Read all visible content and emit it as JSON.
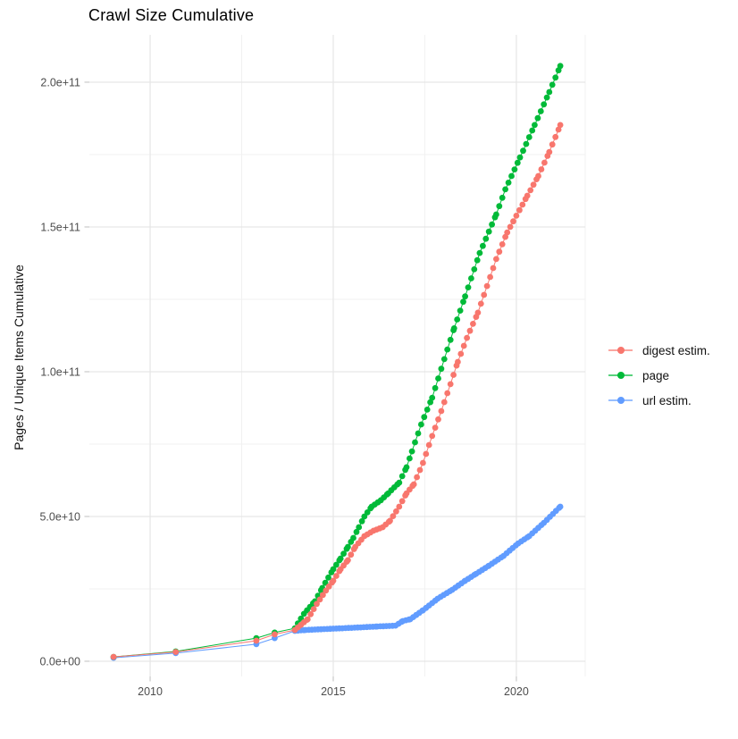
{
  "chart_data": {
    "type": "scatter",
    "title": "Crawl Size Cumulative",
    "xlabel": "",
    "ylabel": "Pages / Unique Items Cumulative",
    "units": "point values are [year, pages_in_billions]; 1 unit = 1e9 pages/items",
    "x_ticks": [
      {
        "label": "2010",
        "value": 2010
      },
      {
        "label": "2015",
        "value": 2015
      },
      {
        "label": "2020",
        "value": 2020
      }
    ],
    "x_minor_ticks": [
      2012.5,
      2017.5
    ],
    "y_ticks": [
      {
        "label": "0.0e+00",
        "value_e9": 0
      },
      {
        "label": "5.0e+10",
        "value_e9": 50
      },
      {
        "label": "1.0e+11",
        "value_e9": 100
      },
      {
        "label": "1.5e+11",
        "value_e9": 150
      },
      {
        "label": "2.0e+11",
        "value_e9": 200
      }
    ],
    "y_minor_ticks_e9": [
      25,
      75,
      125,
      175
    ],
    "xlim": [
      2008.34,
      2021.88
    ],
    "ylim_e9": [
      -5.25,
      216.35
    ],
    "grid": true,
    "legend_position": "right",
    "dense_from_year": 2013.95,
    "point_step_months": 1,
    "draw_order": [
      2,
      1,
      0
    ],
    "series": [
      {
        "name": "digest estim.",
        "color": "#F8766D",
        "points": [
          [
            2009.0,
            1.5
          ],
          [
            2010.7,
            3.2
          ],
          [
            2012.9,
            7.1
          ],
          [
            2013.4,
            9.3
          ],
          [
            2013.95,
            10.8
          ],
          [
            2014.3,
            14.5
          ],
          [
            2014.55,
            19.8
          ],
          [
            2014.8,
            24.4
          ],
          [
            2015.0,
            27.8
          ],
          [
            2015.2,
            31.8
          ],
          [
            2015.4,
            34.9
          ],
          [
            2015.6,
            39.5
          ],
          [
            2015.85,
            43.2
          ],
          [
            2016.1,
            45.1
          ],
          [
            2016.35,
            46.3
          ],
          [
            2016.55,
            48.5
          ],
          [
            2016.8,
            53.4
          ],
          [
            2017.0,
            58.0
          ],
          [
            2017.2,
            61.1
          ],
          [
            2017.45,
            68.5
          ],
          [
            2017.7,
            77.8
          ],
          [
            2017.95,
            86.4
          ],
          [
            2018.2,
            95.7
          ],
          [
            2018.4,
            103.4
          ],
          [
            2018.65,
            111.7
          ],
          [
            2018.95,
            120.4
          ],
          [
            2019.2,
            129.6
          ],
          [
            2019.45,
            138.9
          ],
          [
            2019.75,
            148.1
          ],
          [
            2020.3,
            160.8
          ],
          [
            2020.6,
            167.6
          ],
          [
            2020.9,
            175.9
          ],
          [
            2021.2,
            185.2
          ]
        ]
      },
      {
        "name": "page",
        "color": "#00BA38",
        "points": [
          [
            2009.0,
            1.5
          ],
          [
            2010.7,
            3.4
          ],
          [
            2012.9,
            8.0
          ],
          [
            2013.4,
            9.9
          ],
          [
            2013.95,
            11.4
          ],
          [
            2014.2,
            16.4
          ],
          [
            2014.5,
            20.7
          ],
          [
            2014.7,
            25.3
          ],
          [
            2015.0,
            31.8
          ],
          [
            2015.2,
            35.5
          ],
          [
            2015.4,
            39.5
          ],
          [
            2015.55,
            42.6
          ],
          [
            2015.7,
            46.3
          ],
          [
            2015.85,
            50.0
          ],
          [
            2016.05,
            53.4
          ],
          [
            2016.3,
            55.6
          ],
          [
            2016.5,
            58.0
          ],
          [
            2016.8,
            61.7
          ],
          [
            2017.0,
            67.0
          ],
          [
            2017.15,
            72.5
          ],
          [
            2017.4,
            81.8
          ],
          [
            2017.7,
            91.0
          ],
          [
            2017.95,
            101.0
          ],
          [
            2018.3,
            115.0
          ],
          [
            2018.6,
            126.0
          ],
          [
            2019.0,
            141.0
          ],
          [
            2019.45,
            154.3
          ],
          [
            2019.7,
            163.0
          ],
          [
            2020.1,
            174.0
          ],
          [
            2020.5,
            185.2
          ],
          [
            2020.9,
            196.6
          ],
          [
            2021.2,
            205.6
          ]
        ]
      },
      {
        "name": "url estim.",
        "color": "#619CFF",
        "points": [
          [
            2009.0,
            1.2
          ],
          [
            2010.7,
            2.8
          ],
          [
            2012.9,
            5.9
          ],
          [
            2013.4,
            8.0
          ],
          [
            2013.95,
            10.5
          ],
          [
            2014.25,
            10.8
          ],
          [
            2014.75,
            11.1
          ],
          [
            2015.25,
            11.4
          ],
          [
            2015.75,
            11.7
          ],
          [
            2016.2,
            12.0
          ],
          [
            2016.7,
            12.3
          ],
          [
            2016.9,
            13.9
          ],
          [
            2017.1,
            14.5
          ],
          [
            2017.45,
            17.6
          ],
          [
            2017.85,
            21.6
          ],
          [
            2018.25,
            24.7
          ],
          [
            2018.6,
            27.8
          ],
          [
            2018.9,
            30.2
          ],
          [
            2019.25,
            33.0
          ],
          [
            2019.65,
            36.4
          ],
          [
            2020.05,
            40.7
          ],
          [
            2020.35,
            43.2
          ],
          [
            2020.75,
            47.8
          ],
          [
            2021.0,
            50.9
          ],
          [
            2021.2,
            53.4
          ]
        ]
      }
    ]
  }
}
